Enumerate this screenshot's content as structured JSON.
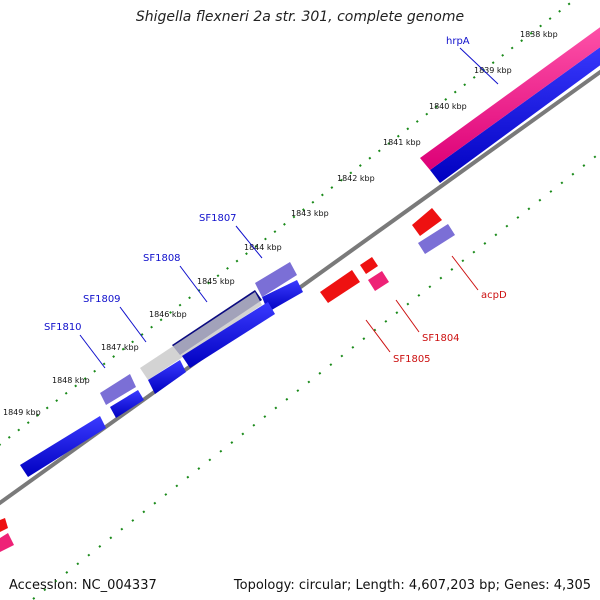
{
  "title": "Shigella flexneri 2a str. 301, complete genome",
  "footer": {
    "accession": "Accession: NC_004337",
    "summary": "Topology: circular; Length: 4,607,203 bp; Genes: 4,305"
  },
  "ticks": [
    {
      "label": "1838 kbp"
    },
    {
      "label": "1839 kbp"
    },
    {
      "label": "1840 kbp"
    },
    {
      "label": "1841 kbp"
    },
    {
      "label": "1842 kbp"
    },
    {
      "label": "1843 kbp"
    },
    {
      "label": "1844 kbp"
    },
    {
      "label": "1845 kbp"
    },
    {
      "label": "1846 kbp"
    },
    {
      "label": "1847 kbp"
    },
    {
      "label": "1848 kbp"
    },
    {
      "label": "1849 kbp"
    }
  ],
  "gene_labels": [
    {
      "name": "hrpA",
      "color": "#1010cc"
    },
    {
      "name": "SF1807",
      "color": "#1010cc"
    },
    {
      "name": "SF1808",
      "color": "#1010cc"
    },
    {
      "name": "SF1809",
      "color": "#1010cc"
    },
    {
      "name": "SF1810",
      "color": "#1010cc"
    },
    {
      "name": "acpD",
      "color": "#cc1010"
    },
    {
      "name": "SF1804",
      "color": "#cc1010"
    },
    {
      "name": "SF1805",
      "color": "#cc1010"
    }
  ],
  "colors": {
    "backbone": "#808080",
    "tick_dots": "#1a8a1a",
    "gene_blue": "#1010dd",
    "gene_light_blue": "#7b6fd6",
    "gene_dark_blue": "#0a0a80",
    "gene_grey": "#c8c8c8",
    "gene_magenta": "#ee1188",
    "gene_red": "#ee1111",
    "gene_pink": "#ee2277"
  }
}
